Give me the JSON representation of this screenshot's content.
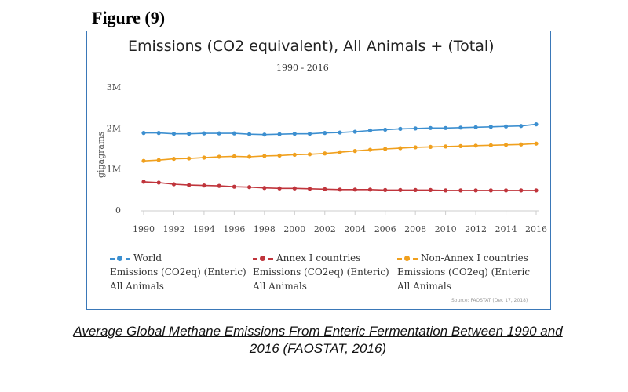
{
  "figure_label": "Figure",
  "figure_number": "(9)",
  "caption": "Average Global Methane Emissions From Enteric Fermentation Between 1990 and 2016 (FAOSTAT, 2016)",
  "source": "Source: FAOSTAT (Dec 17, 2018)",
  "chart_data": {
    "type": "line",
    "title": "Emissions (CO2 equivalent), All Animals + (Total)",
    "subtitle": "1990 - 2016",
    "xlabel": "",
    "ylabel": "gigagrams",
    "ylim": [
      0,
      3000000
    ],
    "yticks": [
      0,
      1000000,
      2000000,
      3000000
    ],
    "ytick_labels": [
      "0",
      "1M",
      "2M",
      "3M"
    ],
    "xticks": [
      1990,
      1992,
      1994,
      1996,
      1998,
      2000,
      2002,
      2004,
      2006,
      2008,
      2010,
      2012,
      2014,
      2016
    ],
    "x": [
      1990,
      1991,
      1992,
      1993,
      1994,
      1995,
      1996,
      1997,
      1998,
      1999,
      2000,
      2001,
      2002,
      2003,
      2004,
      2005,
      2006,
      2007,
      2008,
      2009,
      2010,
      2011,
      2012,
      2013,
      2014,
      2015,
      2016
    ],
    "grid": false,
    "legend_position": "bottom",
    "series": [
      {
        "name": "World",
        "label_lines": [
          "World",
          "Emissions (CO2eq) (Enteric)",
          "All Animals"
        ],
        "color": "#3c8fd0",
        "values": [
          1880000,
          1880000,
          1860000,
          1860000,
          1870000,
          1870000,
          1870000,
          1850000,
          1840000,
          1850000,
          1860000,
          1860000,
          1880000,
          1890000,
          1910000,
          1940000,
          1960000,
          1980000,
          1990000,
          2000000,
          2000000,
          2010000,
          2020000,
          2030000,
          2040000,
          2050000,
          2090000
        ]
      },
      {
        "name": "Annex I countries",
        "label_lines": [
          "Annex I countries",
          "Emissions (CO2eq) (Enteric)",
          "All Animals"
        ],
        "color": "#c0353c",
        "values": [
          690000,
          670000,
          630000,
          610000,
          600000,
          590000,
          570000,
          560000,
          540000,
          530000,
          530000,
          520000,
          510000,
          500000,
          500000,
          500000,
          490000,
          490000,
          490000,
          490000,
          480000,
          480000,
          480000,
          480000,
          480000,
          480000,
          480000
        ]
      },
      {
        "name": "Non-Annex I countries",
        "label_lines": [
          "Non-Annex I countries",
          "Emissions (CO2eq) (Enteric",
          "All Animals"
        ],
        "color": "#f0a01e",
        "values": [
          1200000,
          1220000,
          1250000,
          1260000,
          1280000,
          1300000,
          1310000,
          1300000,
          1320000,
          1330000,
          1350000,
          1360000,
          1380000,
          1410000,
          1440000,
          1470000,
          1490000,
          1510000,
          1530000,
          1540000,
          1550000,
          1560000,
          1570000,
          1580000,
          1590000,
          1600000,
          1620000
        ]
      }
    ]
  }
}
